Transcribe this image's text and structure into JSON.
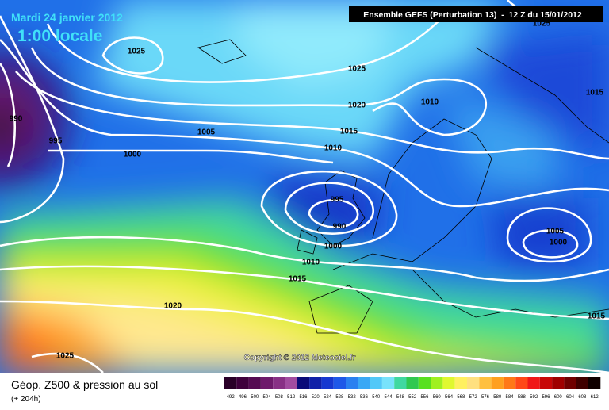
{
  "header": {
    "date": "Mardi 24 janvier 2012",
    "time": "1:00 locale",
    "model": "Ensemble GEFS (Perturbation 13)  -  12 Z du 15/01/2012"
  },
  "isobars": [
    "1025",
    "1025",
    "1020",
    "1015",
    "1010",
    "1005",
    "1000",
    "995",
    "990",
    "995",
    "990",
    "1000",
    "1010",
    "1015",
    "1020",
    "1025",
    "1010",
    "1015",
    "1005",
    "1000",
    "1015",
    "1025"
  ],
  "copyright": "Copyright © 2012 Meteociel.fr",
  "footer": {
    "title": "Géop. Z500 & pression au sol",
    "lead": "(+ 204h)"
  },
  "legend": {
    "items": [
      {
        "value": "492",
        "color": "#2a0028"
      },
      {
        "value": "496",
        "color": "#3f003c"
      },
      {
        "value": "500",
        "color": "#550a52"
      },
      {
        "value": "504",
        "color": "#6e1a6b"
      },
      {
        "value": "508",
        "color": "#883085"
      },
      {
        "value": "512",
        "color": "#a24ca0"
      },
      {
        "value": "516",
        "color": "#0a0a78"
      },
      {
        "value": "520",
        "color": "#1020a8"
      },
      {
        "value": "524",
        "color": "#1638d0"
      },
      {
        "value": "528",
        "color": "#1e58e8"
      },
      {
        "value": "532",
        "color": "#2a80f0"
      },
      {
        "value": "536",
        "color": "#3aa8f5"
      },
      {
        "value": "540",
        "color": "#52c8f8"
      },
      {
        "value": "544",
        "color": "#78e2fb"
      },
      {
        "value": "548",
        "color": "#40d8a0"
      },
      {
        "value": "552",
        "color": "#30c850"
      },
      {
        "value": "556",
        "color": "#58e020"
      },
      {
        "value": "560",
        "color": "#a0f020"
      },
      {
        "value": "564",
        "color": "#e0f830"
      },
      {
        "value": "568",
        "color": "#fff060"
      },
      {
        "value": "572",
        "color": "#ffe080"
      },
      {
        "value": "576",
        "color": "#ffc040"
      },
      {
        "value": "580",
        "color": "#ffa020"
      },
      {
        "value": "584",
        "color": "#ff7818"
      },
      {
        "value": "588",
        "color": "#ff4818"
      },
      {
        "value": "592",
        "color": "#f01818"
      },
      {
        "value": "596",
        "color": "#c80808"
      },
      {
        "value": "600",
        "color": "#a00000"
      },
      {
        "value": "604",
        "color": "#700000"
      },
      {
        "value": "608",
        "color": "#400000"
      },
      {
        "value": "612",
        "color": "#100000"
      }
    ]
  }
}
